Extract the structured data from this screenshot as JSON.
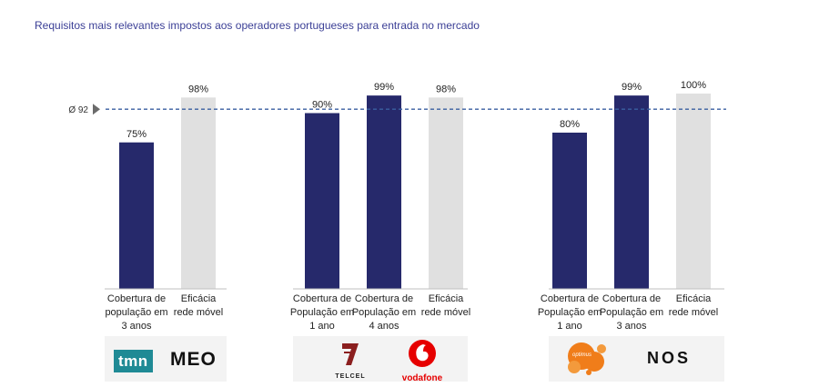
{
  "title": "Requisitos mais relevantes impostos aos operadores portugueses para entrada no mercado",
  "colors": {
    "navy": "#26296b",
    "grey": "#e0e0e0",
    "ref_line": "#3a5fa0"
  },
  "chart_data": {
    "type": "bar",
    "reference_line": {
      "label": "Ø 92",
      "value": 92
    },
    "ylim": [
      0,
      100
    ],
    "groups": [
      {
        "logos": [
          "tmn",
          "MEO"
        ],
        "bars": [
          {
            "category": "Cobertura de população em 3 anos",
            "value": 75,
            "label": "75%",
            "kind": "requirement"
          },
          {
            "category": "Eficácia rede móvel",
            "value": 98,
            "label": "98%",
            "kind": "efficacy"
          }
        ]
      },
      {
        "logos": [
          "TELCEL",
          "vodafone"
        ],
        "bars": [
          {
            "category": "Cobertura de População em 1 ano",
            "value": 90,
            "label": "90%",
            "kind": "requirement"
          },
          {
            "category": "Cobertura de População em 4 anos",
            "value": 99,
            "label": "99%",
            "kind": "requirement"
          },
          {
            "category": "Eficácia rede móvel",
            "value": 98,
            "label": "98%",
            "kind": "efficacy"
          }
        ]
      },
      {
        "logos": [
          "optimus",
          "NOS"
        ],
        "bars": [
          {
            "category": "Cobertura de População em 1 ano",
            "value": 80,
            "label": "80%",
            "kind": "requirement"
          },
          {
            "category": "Cobertura de População em 3 anos",
            "value": 99,
            "label": "99%",
            "kind": "requirement"
          },
          {
            "category": "Eficácia rede móvel",
            "value": 100,
            "label": "100%",
            "kind": "efficacy"
          }
        ]
      }
    ]
  }
}
